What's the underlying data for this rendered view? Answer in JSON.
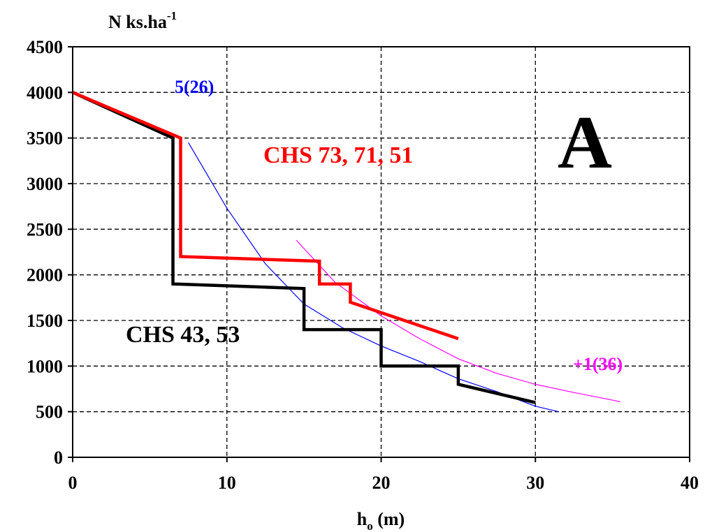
{
  "chart_data": {
    "type": "line",
    "ylabel": "N ks.ha",
    "ylabel_superscript": "-1",
    "xlabel": "h",
    "xlabel_subscript": "o",
    "xlabel_suffix": " (m)",
    "xlim": [
      0,
      40
    ],
    "ylim": [
      0,
      4500
    ],
    "x_ticks": [
      0,
      10,
      20,
      30,
      40
    ],
    "y_ticks": [
      0,
      500,
      1000,
      1500,
      2000,
      2500,
      3000,
      3500,
      4000,
      4500
    ],
    "grid": true,
    "series": [
      {
        "name": "CHS 43, 53",
        "color": "#000000",
        "x": [
          0,
          6.5,
          6.5,
          15,
          15,
          20,
          20,
          25,
          25,
          30
        ],
        "y": [
          4000,
          3500,
          1900,
          1850,
          1400,
          1400,
          1000,
          1000,
          800,
          600
        ]
      },
      {
        "name": "CHS 73, 71, 51",
        "color": "#ff0000",
        "x": [
          0,
          7,
          7,
          16,
          16,
          18,
          18,
          25
        ],
        "y": [
          4000,
          3500,
          2200,
          2150,
          1900,
          1900,
          1700,
          1300
        ]
      },
      {
        "name": "5(26)",
        "color": "#0000ff",
        "x": [
          7.5,
          10,
          12.5,
          15,
          17.5,
          20,
          22.5,
          25,
          27.5,
          30,
          31.5
        ],
        "y": [
          3450,
          2730,
          2120,
          1680,
          1420,
          1220,
          1050,
          860,
          720,
          560,
          500
        ]
      },
      {
        "name": "+1(36)",
        "color": "#ff00ff",
        "x": [
          14.5,
          17,
          20,
          22.5,
          25,
          27.5,
          30,
          32.5,
          35.5
        ],
        "y": [
          2380,
          1920,
          1550,
          1300,
          1080,
          920,
          800,
          710,
          610
        ]
      }
    ],
    "annotations": [
      {
        "text": "A",
        "color": "#000000"
      },
      {
        "text": "CHS 73, 71, 51",
        "color": "#ff0000"
      },
      {
        "text": "CHS 43, 53",
        "color": "#000000"
      },
      {
        "text": "5(26)",
        "color": "#0000ff"
      },
      {
        "text": "+1(36)",
        "color": "#ff00ff"
      }
    ]
  }
}
